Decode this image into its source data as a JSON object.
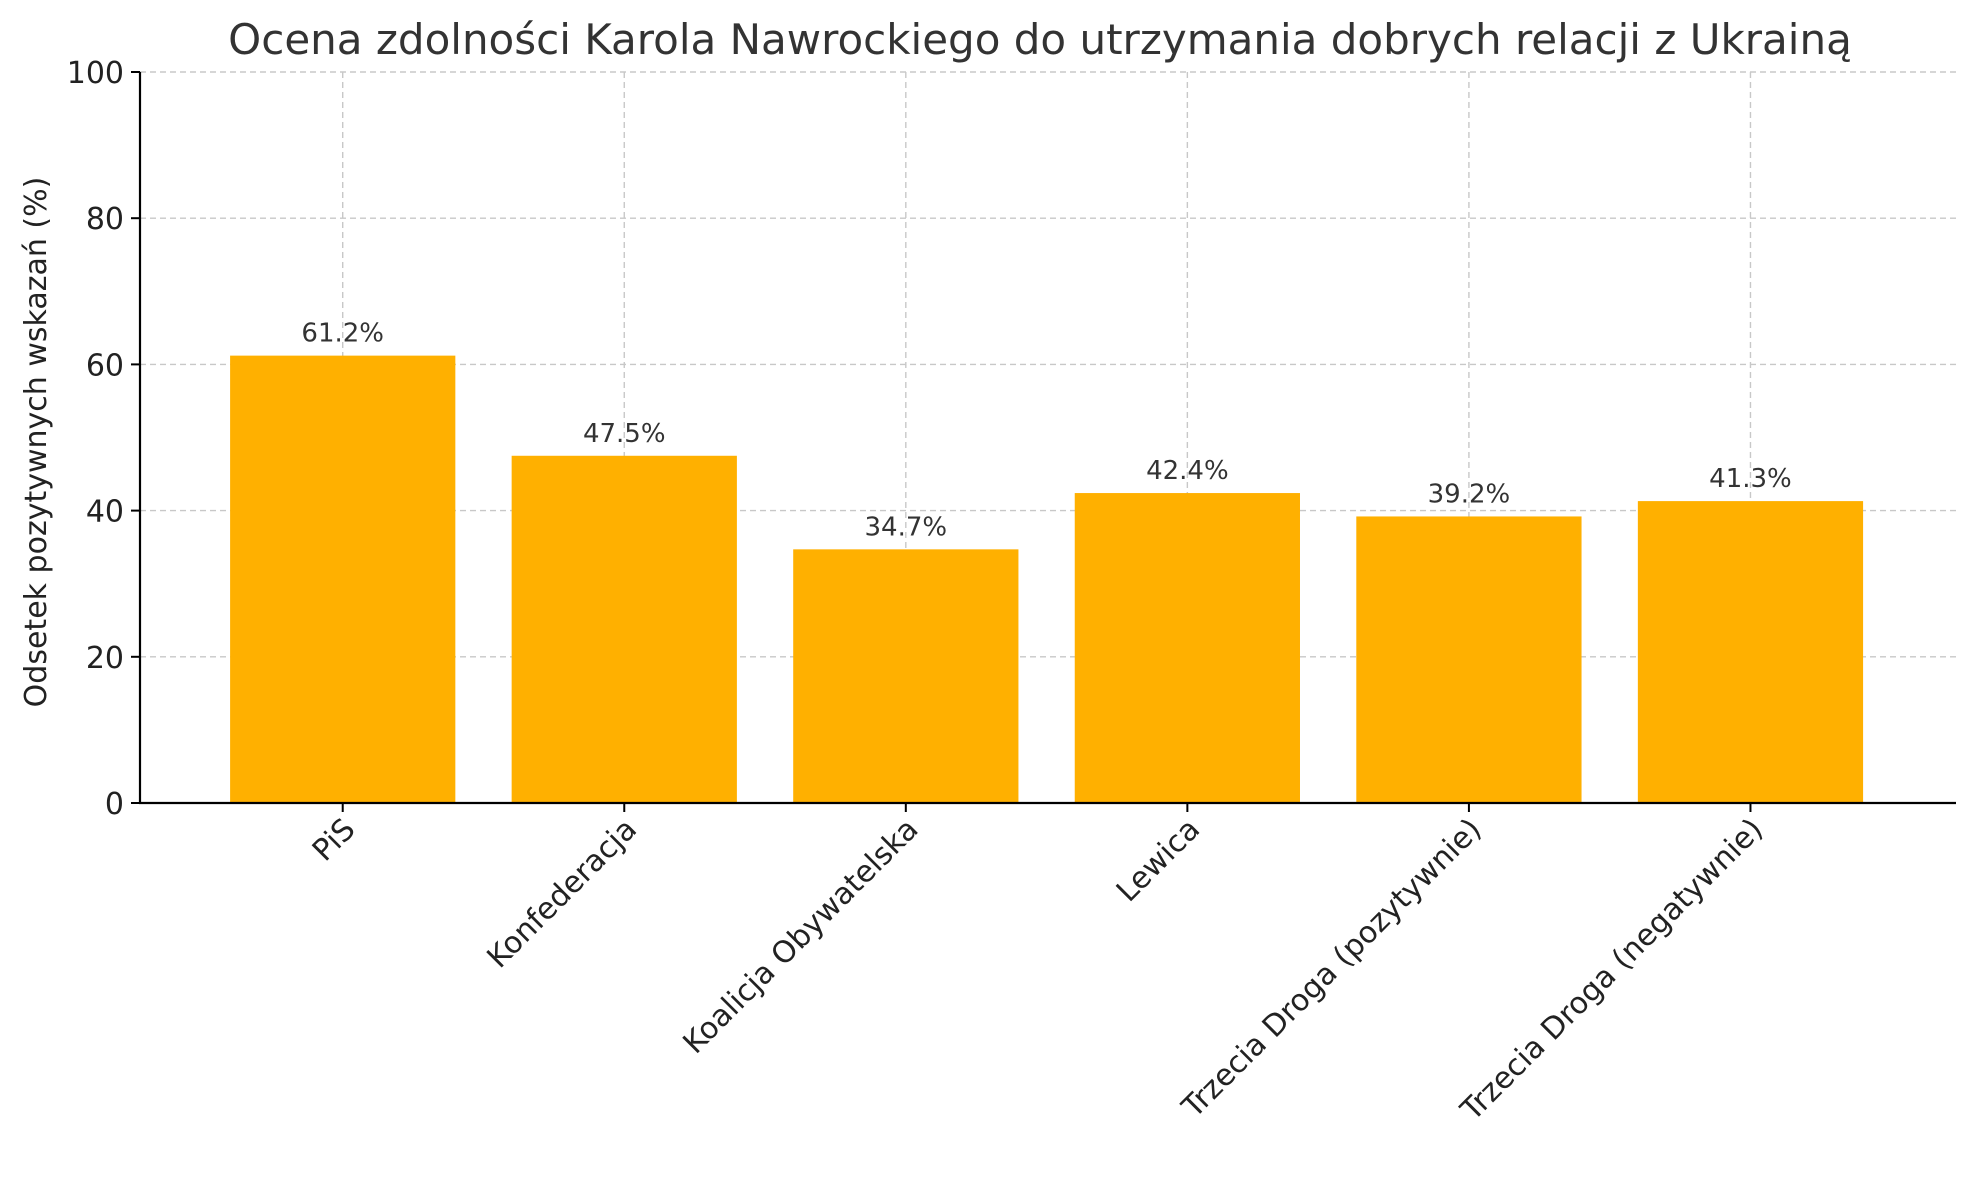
{
  "chart_data": {
    "type": "bar",
    "title": "Ocena zdolności Karola Nawrockiego do utrzymania dobrych relacji z Ukrainą",
    "xlabel": "",
    "ylabel": "Odsetek pozytywnych wskazań (%)",
    "categories": [
      "PiS",
      "Konfederacja",
      "Koalicja Obywatelska",
      "Lewica",
      "Trzecia Droga (pozytywnie)",
      "Trzecia Droga (negatywnie)"
    ],
    "values": [
      61.2,
      47.5,
      34.7,
      42.4,
      39.2,
      41.3
    ],
    "data_labels": [
      "61.2%",
      "47.5%",
      "34.7%",
      "42.4%",
      "39.2%",
      "41.3%"
    ],
    "ylim": [
      0,
      100
    ],
    "yticks": [
      0,
      20,
      40,
      60,
      80,
      100
    ],
    "grid": true,
    "legend": "none",
    "bar_color": "#FFB000"
  }
}
